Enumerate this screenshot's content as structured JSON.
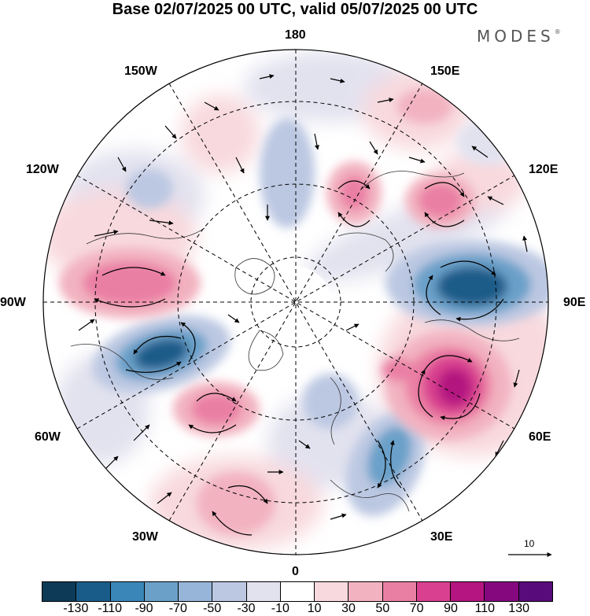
{
  "title": "Base 02/07/2025 00 UTC, valid 05/07/2025 00 UTC",
  "brand": "MODES",
  "brand_mark": "®",
  "longitude_labels": {
    "n180": "180",
    "e150": "150E",
    "e120": "120E",
    "e90": "90E",
    "e60": "60E",
    "e30": "30E",
    "s0": "0",
    "w30": "30W",
    "w60": "60W",
    "w90": "90W",
    "w120": "120W",
    "w150": "150W"
  },
  "reference_vector_label": "10",
  "colorbar": {
    "colors": [
      "#0d3b57",
      "#1a5c89",
      "#3a86b8",
      "#6ba0c9",
      "#97b5d8",
      "#bcc8e2",
      "#e2e2ef",
      "#ffffff",
      "#f8d9de",
      "#f2b2c0",
      "#ea7fa4",
      "#d9408f",
      "#b41580",
      "#85087f",
      "#580b7a"
    ],
    "tick_labels": [
      "-130",
      "-110",
      "-90",
      "-70",
      "-50",
      "-30",
      "-10",
      "10",
      "30",
      "50",
      "70",
      "90",
      "110",
      "130"
    ]
  }
}
